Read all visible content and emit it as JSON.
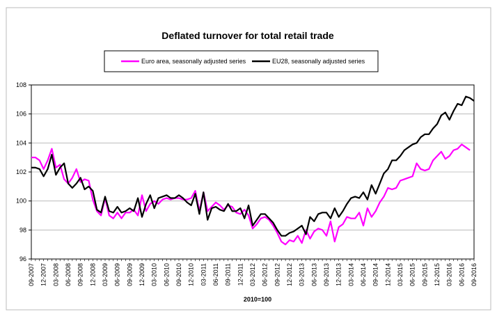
{
  "chart_data": {
    "type": "line",
    "title": "Deflated turnover for total retail trade",
    "xlabel": "2010=100",
    "ylabel": "",
    "ylim": [
      96,
      108
    ],
    "yticks": [
      96,
      98,
      100,
      102,
      104,
      106,
      108
    ],
    "grid": "horizontal",
    "legend_position": "top",
    "x_start": "09-2007",
    "x_tick_labels": [
      "09-2007",
      "12-2007",
      "03-2008",
      "06-2008",
      "09-2008",
      "12-2008",
      "03-2009",
      "06-2009",
      "09-2009",
      "12-2009",
      "03-2010",
      "06-2010",
      "09-2010",
      "12-2010",
      "03-2011",
      "06-2011",
      "09-2011",
      "12-2011",
      "03-2012",
      "06-2012",
      "09-2012",
      "12-2012",
      "03-2013",
      "06-2013",
      "09-2013",
      "12-2013",
      "03-2014",
      "06-2014",
      "09-2014",
      "12-2014",
      "03-2015",
      "06-2015",
      "09-2015",
      "12-2015",
      "03-2016",
      "06-2016",
      "09-2016"
    ],
    "series": [
      {
        "name": "Euro area, seasonally adjusted series",
        "color": "#ff00ff",
        "values": [
          103.0,
          103.0,
          102.8,
          102.2,
          102.8,
          103.6,
          102.3,
          102.5,
          101.5,
          101.2,
          101.6,
          102.2,
          101.3,
          101.5,
          101.4,
          100.1,
          99.3,
          99.0,
          100.2,
          99.0,
          98.8,
          99.2,
          98.8,
          99.2,
          99.2,
          99.4,
          99.0,
          100.4,
          99.3,
          99.8,
          100.0,
          99.8,
          100.1,
          100.2,
          100.1,
          100.2,
          100.2,
          100.1,
          100.1,
          100.2,
          100.7,
          99.3,
          100.6,
          99.3,
          99.6,
          99.9,
          99.7,
          99.4,
          99.7,
          99.6,
          99.2,
          99.1,
          99.4,
          99.0,
          98.1,
          98.4,
          98.8,
          98.9,
          98.7,
          98.3,
          97.8,
          97.2,
          97.0,
          97.3,
          97.2,
          97.6,
          97.1,
          98.0,
          97.4,
          97.9,
          98.1,
          98.0,
          97.6,
          98.6,
          97.2,
          98.2,
          98.4,
          98.9,
          98.8,
          98.8,
          99.2,
          98.3,
          99.5,
          98.9,
          99.3,
          99.9,
          100.3,
          100.9,
          100.8,
          100.9,
          101.4,
          101.5,
          101.6,
          101.7,
          102.6,
          102.2,
          102.1,
          102.2,
          102.8,
          103.1,
          103.4,
          102.9,
          103.1,
          103.5,
          103.6,
          103.9,
          103.7,
          103.5
        ]
      },
      {
        "name": "EU28, seasonally adjusted series",
        "color": "#000000",
        "values": [
          102.3,
          102.3,
          102.2,
          101.7,
          102.2,
          103.2,
          101.8,
          102.3,
          102.6,
          101.2,
          100.9,
          101.2,
          101.6,
          100.8,
          101.0,
          100.7,
          99.4,
          99.2,
          100.3,
          99.3,
          99.2,
          99.6,
          99.2,
          99.3,
          99.5,
          99.3,
          100.2,
          98.9,
          99.8,
          100.4,
          99.5,
          100.2,
          100.3,
          100.4,
          100.2,
          100.2,
          100.4,
          100.2,
          99.9,
          99.7,
          100.5,
          99.1,
          100.6,
          98.7,
          99.5,
          99.6,
          99.4,
          99.3,
          99.8,
          99.3,
          99.3,
          99.5,
          98.8,
          99.7,
          98.3,
          98.7,
          99.1,
          99.1,
          98.8,
          98.5,
          98.0,
          97.6,
          97.6,
          97.8,
          97.9,
          98.1,
          98.3,
          97.7,
          98.9,
          98.6,
          99.1,
          99.2,
          99.2,
          98.8,
          99.5,
          98.9,
          99.3,
          99.8,
          100.2,
          100.3,
          100.2,
          100.6,
          100.1,
          101.1,
          100.5,
          101.2,
          101.9,
          102.2,
          102.8,
          102.8,
          103.1,
          103.5,
          103.7,
          103.9,
          104.0,
          104.4,
          104.6,
          104.6,
          105.0,
          105.3,
          105.9,
          106.1,
          105.6,
          106.2,
          106.7,
          106.6,
          107.2,
          107.1,
          106.9
        ]
      }
    ]
  },
  "colors": {
    "euro_area_line": "#ff00ff",
    "eu28_line": "#000000",
    "grid": "#b0b0b0",
    "border": "#000000"
  }
}
